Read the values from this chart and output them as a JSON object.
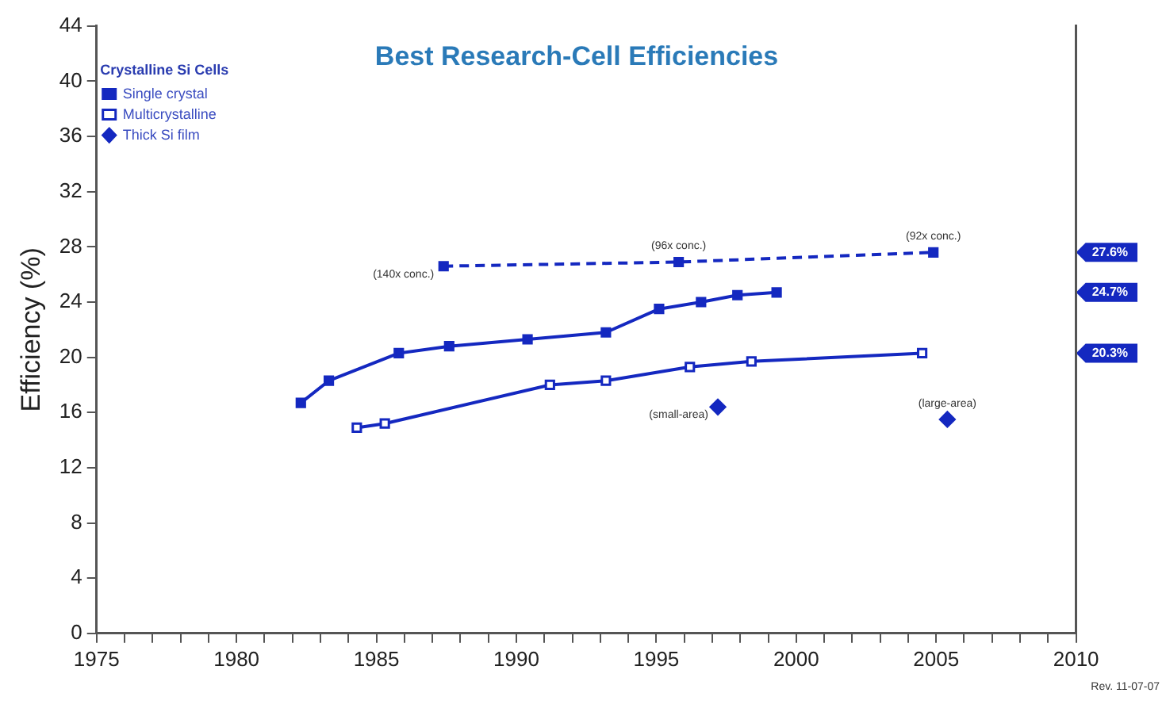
{
  "chart_data": {
    "type": "line",
    "title": "Best Research-Cell Efficiencies",
    "ylabel": "Efficiency (%)",
    "legend_title": "Crystalline Si Cells",
    "legend": "top left",
    "grid": false,
    "xlim": [
      1975,
      2010
    ],
    "xticks": [
      1975,
      {
        "value": 1976,
        "label": null
      },
      {
        "value": 1977,
        "label": null
      },
      {
        "value": 1978,
        "label": null
      },
      {
        "value": 1979,
        "label": null
      },
      1980,
      {
        "value": 1981,
        "label": null
      },
      {
        "value": 1982,
        "label": null
      },
      {
        "value": 1983,
        "label": null
      },
      {
        "value": 1984,
        "label": null
      },
      1985,
      {
        "value": 1986,
        "label": null
      },
      {
        "value": 1987,
        "label": null
      },
      {
        "value": 1988,
        "label": null
      },
      {
        "value": 1989,
        "label": null
      },
      1990,
      {
        "value": 1991,
        "label": null
      },
      {
        "value": 1992,
        "label": null
      },
      {
        "value": 1993,
        "label": null
      },
      {
        "value": 1994,
        "label": null
      },
      1995,
      {
        "value": 1996,
        "label": null
      },
      {
        "value": 1997,
        "label": null
      },
      {
        "value": 1998,
        "label": null
      },
      {
        "value": 1999,
        "label": null
      },
      2000,
      {
        "value": 2001,
        "label": null
      },
      {
        "value": 2002,
        "label": null
      },
      {
        "value": 2003,
        "label": null
      },
      {
        "value": 2004,
        "label": null
      },
      2005,
      {
        "value": 2006,
        "label": null
      },
      {
        "value": 2007,
        "label": null
      },
      {
        "value": 2008,
        "label": null
      },
      {
        "value": 2009,
        "label": null
      },
      2010
    ],
    "ylim": [
      0,
      44
    ],
    "yticks": [
      0,
      4,
      8,
      12,
      16,
      20,
      24,
      28,
      32,
      36,
      40,
      44
    ],
    "series": [
      {
        "name": "Single crystal",
        "color": "#1428c0",
        "marker": "square",
        "line_style": "solid",
        "x": [
          1982.3,
          1983.3,
          1985.8,
          1987.6,
          1990.4,
          1993.2,
          1995.1,
          1996.6,
          1997.9,
          1999.3
        ],
        "values": [
          16.7,
          18.3,
          20.3,
          20.8,
          21.3,
          21.8,
          23.5,
          24.0,
          24.5,
          24.7
        ]
      },
      {
        "name": "Multicrystalline",
        "color": "#1428c0",
        "marker": "square",
        "line_style": "solid",
        "x": [
          1984.3,
          1985.3,
          1991.2,
          1993.2,
          1996.2,
          1998.4,
          2004.5
        ],
        "values": [
          14.9,
          15.2,
          18.0,
          18.3,
          19.3,
          19.7,
          20.3
        ]
      },
      {
        "name": "Thick Si film",
        "type": "scatter",
        "color": "#1428c0",
        "marker": "diamond",
        "x": [
          1997.2,
          2005.4
        ],
        "values": [
          16.4,
          15.5
        ]
      },
      {
        "color": "#1428c0",
        "marker": "square",
        "line_style": "dashed",
        "x": [
          1987.4,
          1995.8,
          2004.9
        ],
        "values": [
          26.6,
          26.9,
          27.6
        ]
      }
    ],
    "annotations": [
      {
        "text": "(140x conc.)",
        "x": 1987.4,
        "y": 26.6
      },
      {
        "text": "(96x conc.)",
        "x": 1995.8,
        "y": 26.9
      },
      {
        "text": "(92x conc.)",
        "x": 2004.9,
        "y": 27.6
      },
      {
        "text": "(small-area)",
        "x": 1997.2,
        "y": 16.4
      },
      {
        "text": "(large-area)",
        "x": 2005.4,
        "y": 15.5
      },
      "Rev. 11-07-07"
    ],
    "y2lim": [
      0,
      44
    ],
    "y2ticks": [
      {
        "value": 20.3,
        "label": "20.3%"
      },
      {
        "value": 24.7,
        "label": "24.7%"
      },
      {
        "value": 27.6,
        "label": "27.6%"
      }
    ]
  }
}
